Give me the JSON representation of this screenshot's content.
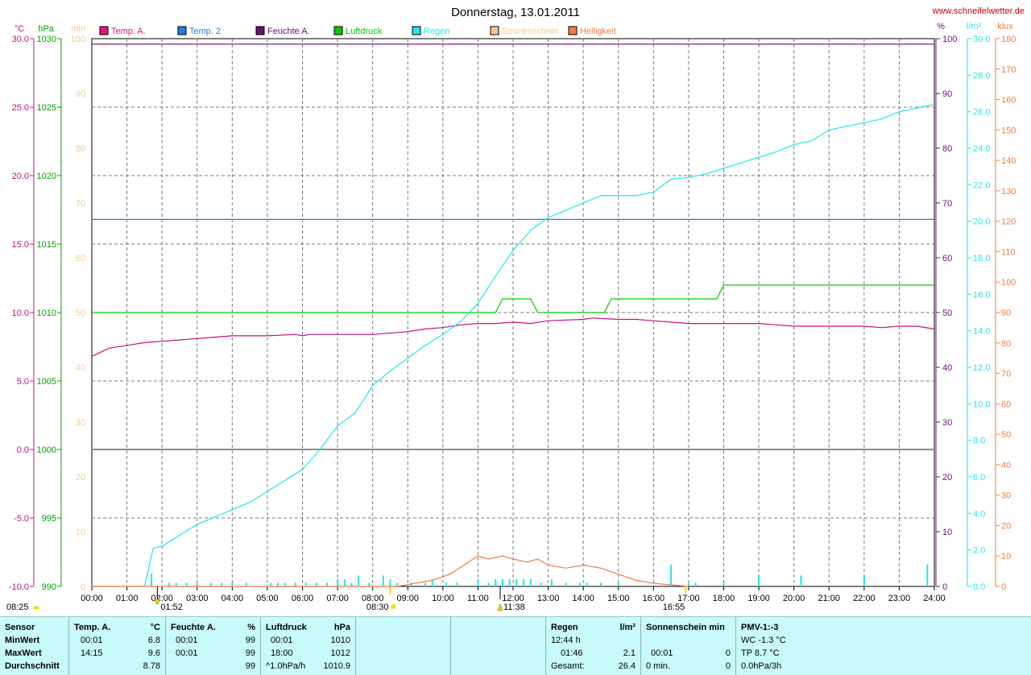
{
  "header": {
    "title": "Donnerstag, 13.01.2011",
    "site_url": "www.schneifelwetter.de"
  },
  "axes": {
    "temp_unit": "°C",
    "pressure_unit": "hPa",
    "sun_unit": "min",
    "humidity_unit": "%",
    "rain_unit": "l/m²",
    "light_unit": "klux",
    "temp_ticks": [
      "30.0",
      "25.0",
      "20.0",
      "15.0",
      "10.0",
      "5.0",
      "0.0",
      "-5.0",
      "-10.0"
    ],
    "pressure_ticks": [
      "1030",
      "1025",
      "1020",
      "1015",
      "1010",
      "1005",
      "1000",
      "995",
      "990"
    ],
    "sun_ticks": [
      "100",
      "90",
      "80",
      "70",
      "60",
      "50",
      "40",
      "30",
      "20",
      "10",
      "0"
    ],
    "humidity_ticks": [
      "100",
      "90",
      "80",
      "70",
      "60",
      "50",
      "40",
      "30",
      "20",
      "10",
      "0"
    ],
    "rain_ticks": [
      "30.0",
      "28.0",
      "26.0",
      "24.0",
      "22.0",
      "20.0",
      "18.0",
      "16.0",
      "14.0",
      "12.0",
      "10.0",
      "8.0",
      "6.0",
      "4.0",
      "2.0",
      "0.0"
    ],
    "light_ticks": [
      "180",
      "170",
      "160",
      "150",
      "140",
      "130",
      "120",
      "110",
      "100",
      "90",
      "80",
      "70",
      "60",
      "50",
      "40",
      "30",
      "20",
      "10",
      "0"
    ],
    "time_ticks": [
      "00:00",
      "01:00",
      "02:00",
      "03:00",
      "04:00",
      "05:00",
      "06:00",
      "07:00",
      "08:00",
      "09:00",
      "10:00",
      "11:00",
      "12:00",
      "13:00",
      "14:00",
      "15:00",
      "16:00",
      "17:00",
      "18:00",
      "19:00",
      "20:00",
      "21:00",
      "22:00",
      "23:00",
      "24:00"
    ]
  },
  "legend": [
    {
      "label": "Temp. A.",
      "color": "#e0157a"
    },
    {
      "label": "Temp. 2",
      "color": "#1f7fe0"
    },
    {
      "label": "Feuchte A.",
      "color": "#6a0f78"
    },
    {
      "label": "Luftdruck",
      "color": "#00cc00"
    },
    {
      "label": "Regen",
      "color": "#1ee6f0"
    },
    {
      "label": "Sonnenschein",
      "color": "#f7c88e"
    },
    {
      "label": "Helligkeit",
      "color": "#f07c3c"
    }
  ],
  "markers": {
    "sunrise": "08:25",
    "sunset": "16:55",
    "moon_time": "01:52",
    "sun_time": "08:30",
    "noon_time": "11:38"
  },
  "chart_data": {
    "type": "line",
    "title": "Donnerstag, 13.01.2011",
    "x_label": "",
    "x_range": [
      "00:00",
      "24:00"
    ],
    "grid": true,
    "series": [
      {
        "name": "Temp. A.",
        "axis": "°C",
        "color": "#c0147a",
        "x": [
          0,
          0.5,
          1,
          1.5,
          2,
          2.5,
          3,
          3.5,
          4,
          5,
          5.8,
          6,
          6.2,
          6.5,
          7,
          8,
          9,
          9.5,
          10,
          10.5,
          11,
          11.5,
          12,
          12.5,
          13,
          14,
          14.25,
          15,
          15.5,
          16,
          16.5,
          17,
          18,
          19,
          19.5,
          20,
          20.5,
          21,
          22,
          22.5,
          23,
          23.5,
          24
        ],
        "y": [
          6.8,
          7.4,
          7.6,
          7.8,
          7.9,
          8.0,
          8.1,
          8.2,
          8.3,
          8.3,
          8.4,
          8.3,
          8.4,
          8.4,
          8.4,
          8.4,
          8.6,
          8.8,
          8.9,
          9.1,
          9.2,
          9.2,
          9.3,
          9.2,
          9.4,
          9.5,
          9.6,
          9.5,
          9.5,
          9.4,
          9.3,
          9.2,
          9.2,
          9.2,
          9.1,
          9.0,
          9.0,
          9.0,
          9.0,
          8.9,
          9.0,
          9.0,
          8.8
        ]
      },
      {
        "name": "Feuchte A.",
        "axis": "%",
        "color": "#6a0f78",
        "x": [
          0,
          24
        ],
        "y": [
          99,
          99
        ]
      },
      {
        "name": "Temp. 2",
        "axis": "°C",
        "color": "#1f7fe0",
        "x": [
          0,
          24
        ],
        "y": [
          16.8,
          16.8
        ]
      },
      {
        "name": "Luftdruck",
        "axis": "hPa",
        "color": "#00cc00",
        "x": [
          0,
          11.5,
          11.7,
          12.5,
          12.7,
          14.6,
          14.8,
          17.8,
          18.0,
          24
        ],
        "y": [
          1010,
          1010,
          1011,
          1011,
          1010,
          1010,
          1011,
          1011,
          1012,
          1012
        ]
      },
      {
        "name": "Regen",
        "axis": "l/m²",
        "color": "#1ee6f0",
        "x": [
          0,
          1.5,
          1.75,
          2.0,
          2.5,
          3.0,
          3.5,
          4.0,
          4.5,
          5.0,
          5.5,
          6.0,
          6.5,
          7.0,
          7.5,
          8.0,
          8.5,
          9.0,
          9.5,
          10.0,
          10.5,
          11.0,
          11.5,
          12.0,
          12.5,
          13.0,
          13.5,
          14.0,
          14.5,
          15.0,
          15.5,
          16.0,
          16.5,
          17.0,
          17.5,
          18.0,
          18.5,
          19.0,
          19.5,
          20.0,
          20.5,
          21.0,
          21.5,
          22.0,
          22.5,
          23.0,
          23.5,
          24.0
        ],
        "y": [
          0,
          0,
          2.1,
          2.2,
          2.8,
          3.4,
          3.8,
          4.2,
          4.6,
          5.2,
          5.8,
          6.4,
          7.5,
          8.8,
          9.5,
          11.0,
          11.8,
          12.5,
          13.2,
          13.8,
          14.5,
          15.5,
          17.0,
          18.4,
          19.5,
          20.2,
          20.6,
          21.0,
          21.4,
          21.4,
          21.4,
          21.6,
          22.3,
          22.4,
          22.6,
          22.9,
          23.2,
          23.5,
          23.8,
          24.2,
          24.4,
          25.0,
          25.2,
          25.4,
          25.6,
          26.0,
          26.2,
          26.4
        ]
      },
      {
        "name": "Helligkeit",
        "axis": "klux",
        "color": "#f07c3c",
        "x": [
          0,
          8.7,
          9.2,
          9.7,
          10.2,
          10.6,
          11.0,
          11.3,
          11.7,
          12.0,
          12.4,
          12.7,
          13.0,
          13.5,
          14.0,
          14.5,
          15.0,
          15.5,
          16.0,
          16.5,
          17.0
        ],
        "y": [
          0,
          0,
          1,
          2,
          4,
          7,
          10,
          9,
          10,
          9,
          8,
          9,
          7,
          6,
          7,
          6,
          4,
          2,
          1,
          0.5,
          0
        ]
      }
    ],
    "rain_bars": {
      "x": [
        1.7,
        2.2,
        2.4,
        2.7,
        3.0,
        3.4,
        3.7,
        4.0,
        4.4,
        5.1,
        5.3,
        5.5,
        5.8,
        6.1,
        6.4,
        6.7,
        7.0,
        7.2,
        7.4,
        7.6,
        7.9,
        8.3,
        8.5,
        8.7,
        9.1,
        9.5,
        9.7,
        10.1,
        10.4,
        11.0,
        11.3,
        11.5,
        11.7,
        11.9,
        12.1,
        12.3,
        12.5,
        12.8,
        13.1,
        13.5,
        13.9,
        14.1,
        14.5,
        15.0,
        16.5,
        17.0,
        17.2,
        18.0,
        19.0,
        20.2,
        22.0,
        23.8
      ],
      "values": [
        0.7,
        0.2,
        0.2,
        0.2,
        0.2,
        0.2,
        0.2,
        0.2,
        0.2,
        0.2,
        0.2,
        0.2,
        0.2,
        0.2,
        0.2,
        0.2,
        0.4,
        0.4,
        0.2,
        0.6,
        0.2,
        0.6,
        0.4,
        0.2,
        0.2,
        0.2,
        0.4,
        0.2,
        0.2,
        0.4,
        0.2,
        0.4,
        0.4,
        0.4,
        0.4,
        0.4,
        0.4,
        0.2,
        0.4,
        0.2,
        0.2,
        0.2,
        0.2,
        0.2,
        1.2,
        0.2,
        0.2,
        0.2,
        0.6,
        0.6,
        0.6,
        1.2
      ]
    }
  },
  "summary": {
    "sensor": {
      "header": "Sensor",
      "rows": [
        "MinWert",
        "MaxWert",
        "Durchschnitt"
      ]
    },
    "temp": {
      "header": "Temp. A.",
      "unit": "°C",
      "min_time": "00:01",
      "min": "6.8",
      "max_time": "14:15",
      "max": "9.6",
      "avg": "8.78"
    },
    "humidity": {
      "header": "Feuchte A.",
      "unit": "%",
      "min_time": "00:01",
      "min": "99",
      "max_time": "00:01",
      "max": "99",
      "avg": "99"
    },
    "pressure": {
      "header": "Luftdruck",
      "unit": "hPa",
      "min_time": "00:01",
      "min": "1010",
      "max_time": "18:00",
      "max": "1012",
      "trend": "^1.0hPa/h",
      "avg": "1010.9"
    },
    "rain": {
      "header": "Regen",
      "unit": "l/m²",
      "r1": "12:44 h",
      "r2_time": "01:46",
      "r2": "2.1",
      "total_label": "Gesamt:",
      "total": "26.4"
    },
    "sunshine": {
      "header": "Sonnenschein min",
      "r2_time": "00:01",
      "r2": "0",
      "r3_label": "0 min.",
      "r3": "0"
    },
    "pmv": {
      "header": "PMV-1:-3",
      "r1": "WC -1.3 °C",
      "r2": "TP 8.7 °C",
      "r3": "0.0hPa/3h"
    }
  }
}
